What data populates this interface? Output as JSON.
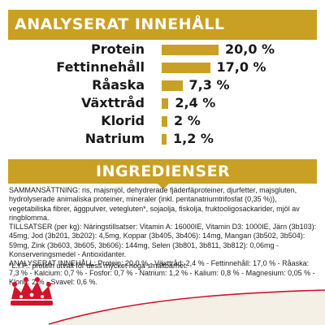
{
  "analysis": {
    "title": "ANALYSERAT INNEHÅLL",
    "rows": [
      {
        "label": "Protein",
        "value": "20,0 %",
        "amount": 20.0
      },
      {
        "label": "Fettinnehåll",
        "value": "17,0 %",
        "amount": 17.0
      },
      {
        "label": "Råaska",
        "value": "7,3 %",
        "amount": 7.3
      },
      {
        "label": "Växttråd",
        "value": "2,4 %",
        "amount": 2.4
      },
      {
        "label": "Klorid",
        "value": "2 %",
        "amount": 2.0
      },
      {
        "label": "Natrium",
        "value": "1,2 %",
        "amount": 1.2
      }
    ]
  },
  "ingredients": {
    "title": "INGREDIENSER",
    "composition": "SAMMANSÄTTNING: ris, majsmjöl, dehydrerade fjäderfäproteiner, djurfetter, majsgluten, hydrolyserade animaliska proteiner, mineraler (inkl. pentanatriumtrifosfat (0,35 %)), vegetabiliska fibrer, äggpulver, vetegluten*, sojaolja, fiskolja, fruktooligosackarider, mjöl av ringblomma.",
    "additives": "TILLSATSER (per kg): Näringstillsatser: Vitamin A: 16000IE, Vitamin D3: 1000IE, Järn (3b103): 45mg, Jod (3b201, 3b202): 4,5mg, Koppar (3b405, 3b406): 14mg, Mangan (3b502, 3b504): 59mg, Zink (3b603, 3b605, 3b606): 144mg, Selen (3b801, 3b811, 3b812): 0,06mg - Konserveringsmedel - Antioxidanter.",
    "analysis_text": "ANALYSERAT INNEHÅLL: Protein: 20,0 % - Växttråd: 2,4 % - Fettinnehåll: 17,0 % - Råaska: 7,3 % - Kalcium: 0,7 % - Fosfor: 0,7 % - Natrium: 1,2 % - Kalium: 0,8 % - Magnesium: 0,05 % - Klorid: 2 % - Svavel: 0,6 %.",
    "footnote": "*L.I.P.: protein utvalt för dess mycket höga smältbarhet."
  },
  "colors": {
    "accent": "#c9a023",
    "brand_red": "#d2132b"
  },
  "icons": {
    "logo": "royal-crown-logo"
  }
}
